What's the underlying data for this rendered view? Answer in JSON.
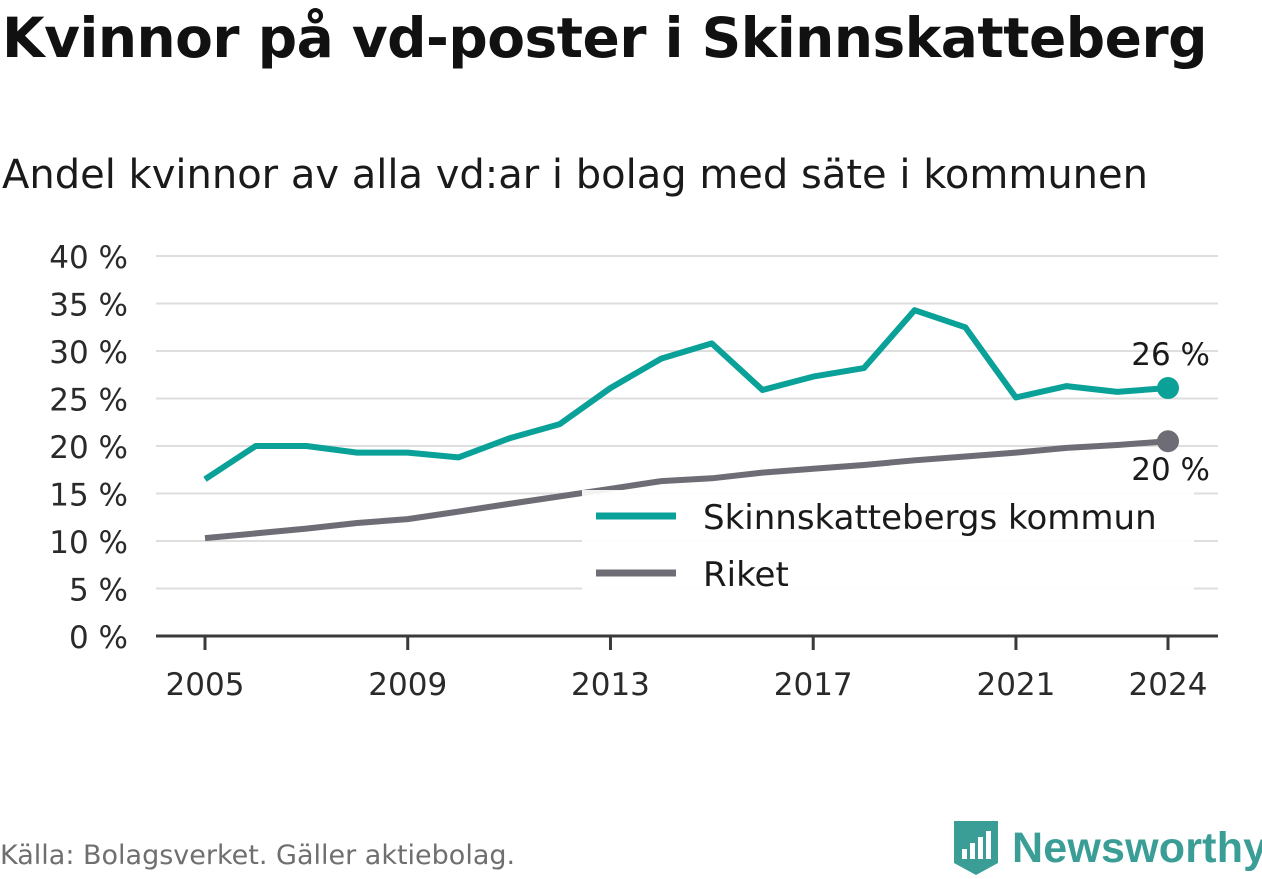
{
  "title": "Kvinnor på vd-poster i Skinnskatteberg",
  "subtitle": "Andel kvinnor av alla vd:ar i bolag med säte i kommunen",
  "source": "Källa: Bolagsverket. Gäller aktiebolag.",
  "brand": "Newsworthy",
  "colors": {
    "kommun": "#0aa198",
    "riket": "#6e6d75",
    "grid": "#dedede",
    "axis": "#3a3a3a",
    "brand": "#3a9e97"
  },
  "chart_data": {
    "type": "line",
    "xlim": [
      2005,
      2024
    ],
    "ylim": [
      0,
      40
    ],
    "y_ticks": [
      0,
      5,
      10,
      15,
      20,
      25,
      30,
      35,
      40
    ],
    "y_tick_labels": [
      "0 %",
      "5 %",
      "10 %",
      "15 %",
      "20 %",
      "25 %",
      "30 %",
      "35 %",
      "40 %"
    ],
    "x_ticks": [
      2005,
      2009,
      2013,
      2017,
      2021,
      2024
    ],
    "x_tick_labels": [
      "2005",
      "2009",
      "2013",
      "2017",
      "2021",
      "2024"
    ],
    "grid": true,
    "legend_position": "bottom-right",
    "x": [
      2005,
      2006,
      2007,
      2008,
      2009,
      2010,
      2011,
      2012,
      2013,
      2014,
      2015,
      2016,
      2017,
      2018,
      2019,
      2020,
      2021,
      2022,
      2023,
      2024
    ],
    "series": [
      {
        "name": "Skinnskattebergs kommun",
        "color_key": "kommun",
        "end_label": "26 %",
        "values": [
          16.5,
          20.0,
          20.0,
          19.3,
          19.3,
          18.8,
          20.8,
          22.3,
          26.1,
          29.2,
          30.8,
          25.9,
          27.3,
          28.2,
          34.3,
          32.5,
          25.1,
          26.3,
          25.7,
          26.1
        ]
      },
      {
        "name": "Riket",
        "color_key": "riket",
        "end_label": "20 %",
        "values": [
          10.3,
          10.8,
          11.3,
          11.9,
          12.3,
          13.1,
          13.9,
          14.7,
          15.5,
          16.3,
          16.6,
          17.2,
          17.6,
          18.0,
          18.5,
          18.9,
          19.3,
          19.8,
          20.1,
          20.5
        ]
      }
    ]
  }
}
